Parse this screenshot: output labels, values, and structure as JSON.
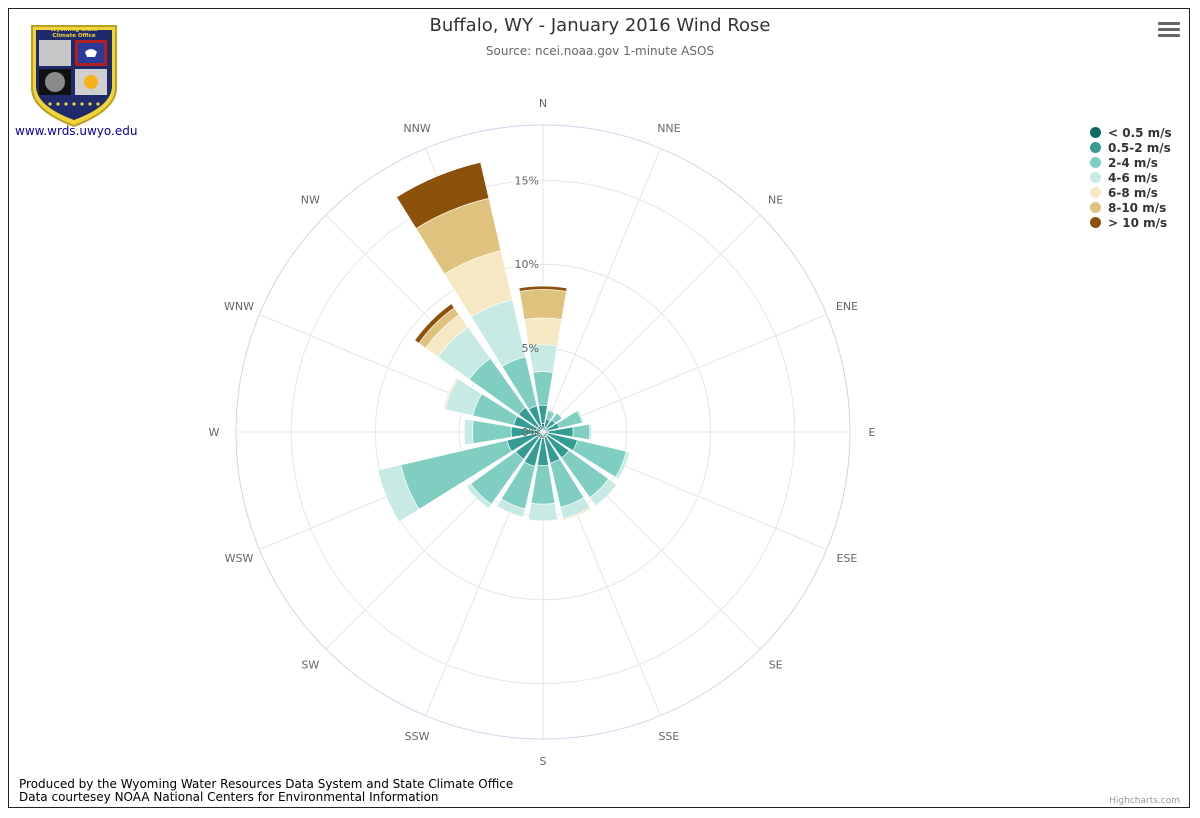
{
  "header": {
    "title": "Buffalo, WY - January 2016 Wind Rose",
    "subtitle": "Source: ncei.noaa.gov 1-minute ASOS"
  },
  "logo": {
    "banner_line1": "Wyoming State",
    "banner_line2": "Climate Office",
    "link_text": "www.wrds.uwyo.edu"
  },
  "footer": {
    "line1": "Produced by the Wyoming Water Resources Data System and State Climate Office",
    "line2": "Data courtesey NOAA National Centers for Environmental Information"
  },
  "credits": "Highcharts.com",
  "chart_data": {
    "type": "windrose",
    "title": "Buffalo, WY - January 2016 Wind Rose",
    "subtitle": "Source: ncei.noaa.gov 1-minute ASOS",
    "stacking": true,
    "directions": [
      "N",
      "NNE",
      "NE",
      "ENE",
      "E",
      "ESE",
      "SE",
      "SSE",
      "S",
      "SSW",
      "SW",
      "WSW",
      "W",
      "WNW",
      "NW",
      "NNW"
    ],
    "radial_ticks": [
      0,
      5,
      10,
      15
    ],
    "radial_tick_labels": [
      "0%",
      "5%",
      "10%",
      "15%"
    ],
    "ymax": 18.3,
    "legend_position": "top-right",
    "series": [
      {
        "name": "< 0.5 m/s",
        "color": "#0d6b63",
        "values": [
          0.5,
          0.3,
          0.3,
          0.2,
          0.3,
          0.3,
          0.3,
          0.3,
          0.4,
          0.4,
          0.4,
          0.4,
          0.5,
          0.4,
          0.4,
          0.4
        ]
      },
      {
        "name": "0.5-2 m/s",
        "color": "#359c93",
        "values": [
          1.1,
          0.5,
          0.6,
          0.8,
          1.5,
          1.8,
          1.6,
          1.6,
          1.6,
          1.7,
          1.6,
          1.8,
          1.4,
          1.4,
          1.4,
          1.2
        ]
      },
      {
        "name": "2-4 m/s",
        "color": "#80cdc1",
        "values": [
          2.0,
          0.5,
          0.5,
          1.4,
          1.0,
          3.0,
          2.9,
          2.7,
          2.3,
          2.6,
          3.3,
          6.5,
          2.3,
          2.5,
          3.6,
          3.0
        ]
      },
      {
        "name": "4-6 m/s",
        "color": "#c7eae5",
        "values": [
          1.6,
          0.1,
          0,
          0.1,
          0.1,
          0.2,
          0.6,
          0.7,
          1.0,
          0.5,
          0.3,
          1.4,
          0.5,
          1.7,
          2.3,
          3.5
        ]
      },
      {
        "name": "6-8 m/s",
        "color": "#f6e8c3",
        "values": [
          1.6,
          0,
          0,
          0,
          0,
          0,
          0,
          0.1,
          0,
          0,
          0,
          0,
          0,
          0.1,
          0.9,
          3.0
        ]
      },
      {
        "name": "8-10 m/s",
        "color": "#dfc27d",
        "values": [
          1.7,
          0,
          0,
          0,
          0,
          0,
          0,
          0,
          0,
          0,
          0,
          0,
          0,
          0,
          0.5,
          3.2
        ]
      },
      {
        "name": "> 10 m/s",
        "color": "#8c510a",
        "values": [
          0.2,
          0,
          0,
          0,
          0,
          0,
          0,
          0,
          0,
          0,
          0,
          0,
          0,
          0,
          0.3,
          2.2
        ]
      }
    ]
  }
}
